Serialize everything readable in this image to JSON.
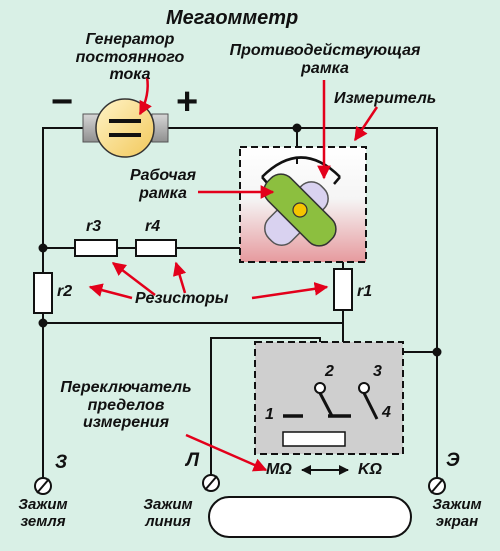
{
  "title": "Мегаомметр",
  "generator": {
    "line1": "Генератор",
    "line2": "постоянного",
    "line3": "тока",
    "minus": "−",
    "plus": "+"
  },
  "counter_frame": {
    "line1": "Противодействующая",
    "line2": "рамка"
  },
  "meter": "Измеритель",
  "working_frame": {
    "line1": "Рабочая",
    "line2": "рамка"
  },
  "resistors": {
    "r1": "r1",
    "r2": "r2",
    "r3": "r3",
    "r4": "r4",
    "label": "Резисторы"
  },
  "switch": {
    "line1": "Переключатель",
    "line2": "пределов",
    "line3": "измерения",
    "pos1": "1",
    "pos2": "2",
    "pos3": "3",
    "pos4": "4",
    "mohm": "MΩ",
    "kohm": "KΩ"
  },
  "terminals": {
    "earth": {
      "letter": "З",
      "line1": "Зажим",
      "line2": "земля"
    },
    "line": {
      "letter": "Л",
      "line1": "Зажим",
      "line2": "линия"
    },
    "screen": {
      "letter": "Э",
      "line1": "Зажим",
      "line2": "экран"
    }
  },
  "colors": {
    "wire": "#111111",
    "arrow": "#e3001b",
    "background": "#d9f0e6",
    "rotor_green": "#8cbf3f",
    "rotor_lavender": "#d9d2f0"
  }
}
